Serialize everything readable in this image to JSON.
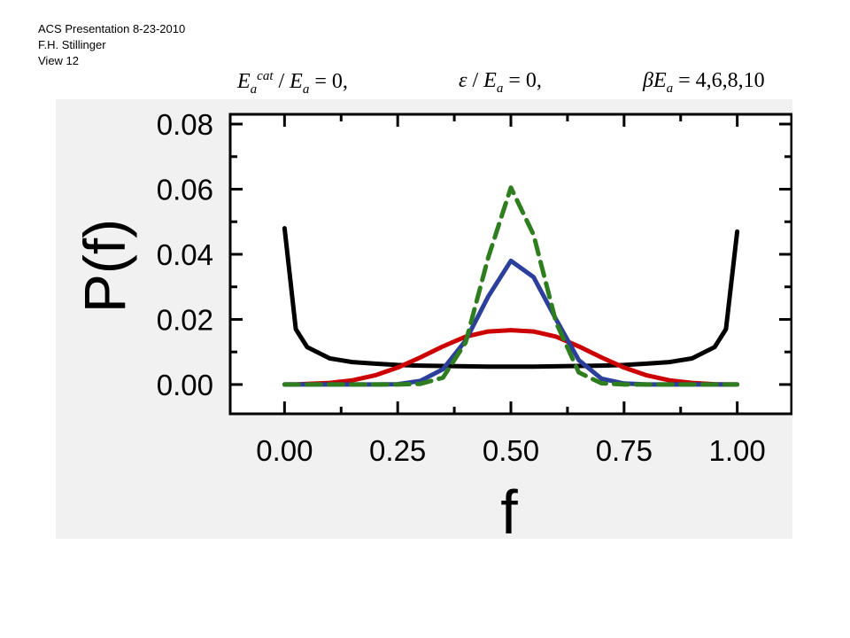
{
  "header": {
    "line1": "ACS Presentation 8-23-2010",
    "line2": "F.H. Stillinger",
    "line3": "View 12"
  },
  "formula": {
    "term1": "E_a^cat / E_a = 0,",
    "term2": "ε / E_a = 0,",
    "term3": "βE_a = 4,6,8,10"
  },
  "chart_data": {
    "type": "line",
    "xlabel": "f",
    "ylabel": "P(f)",
    "xlim": [
      -0.12,
      1.12
    ],
    "ylim": [
      -0.009,
      0.083
    ],
    "xticks": [
      "0.00",
      "0.25",
      "0.50",
      "0.75",
      "1.00"
    ],
    "yticks": [
      "0.00",
      "0.02",
      "0.04",
      "0.06",
      "0.08"
    ],
    "x": [
      0.0,
      0.025,
      0.05,
      0.1,
      0.15,
      0.2,
      0.25,
      0.3,
      0.35,
      0.4,
      0.45,
      0.5,
      0.55,
      0.6,
      0.65,
      0.7,
      0.75,
      0.8,
      0.85,
      0.9,
      0.95,
      0.975,
      1.0
    ],
    "series": [
      {
        "color": "#000000",
        "dash": "solid",
        "values": [
          0.048,
          0.017,
          0.0115,
          0.008,
          0.0069,
          0.0064,
          0.006,
          0.0058,
          0.0057,
          0.0056,
          0.0055,
          0.0055,
          0.0055,
          0.0056,
          0.0057,
          0.0058,
          0.006,
          0.0064,
          0.0069,
          0.008,
          0.0115,
          0.017,
          0.047
        ]
      },
      {
        "color": "#cc0000",
        "dash": "solid",
        "values": [
          0.0,
          0.0,
          0.0002,
          0.0005,
          0.0013,
          0.0028,
          0.0052,
          0.0083,
          0.0117,
          0.0147,
          0.0163,
          0.0167,
          0.0163,
          0.0147,
          0.0117,
          0.0083,
          0.0052,
          0.0028,
          0.0013,
          0.0005,
          0.0001,
          0.0,
          0.0
        ]
      },
      {
        "color": "#2b3f9b",
        "dash": "solid",
        "values": [
          0.0,
          0.0,
          0.0,
          0.0,
          0.0,
          0.0,
          0.0001,
          0.0011,
          0.0047,
          0.0135,
          0.027,
          0.038,
          0.033,
          0.02,
          0.0075,
          0.0018,
          0.0003,
          0.0,
          0.0,
          0.0,
          0.0,
          0.0,
          0.0
        ]
      },
      {
        "color": "#2e7d1e",
        "dash": "dashed",
        "values": [
          0.0,
          0.0,
          0.0,
          0.0,
          0.0,
          0.0,
          0.0,
          0.0002,
          0.0021,
          0.0129,
          0.039,
          0.0605,
          0.046,
          0.019,
          0.0037,
          0.0004,
          0.0,
          0.0,
          0.0,
          0.0,
          0.0,
          0.0,
          0.0
        ]
      }
    ]
  }
}
